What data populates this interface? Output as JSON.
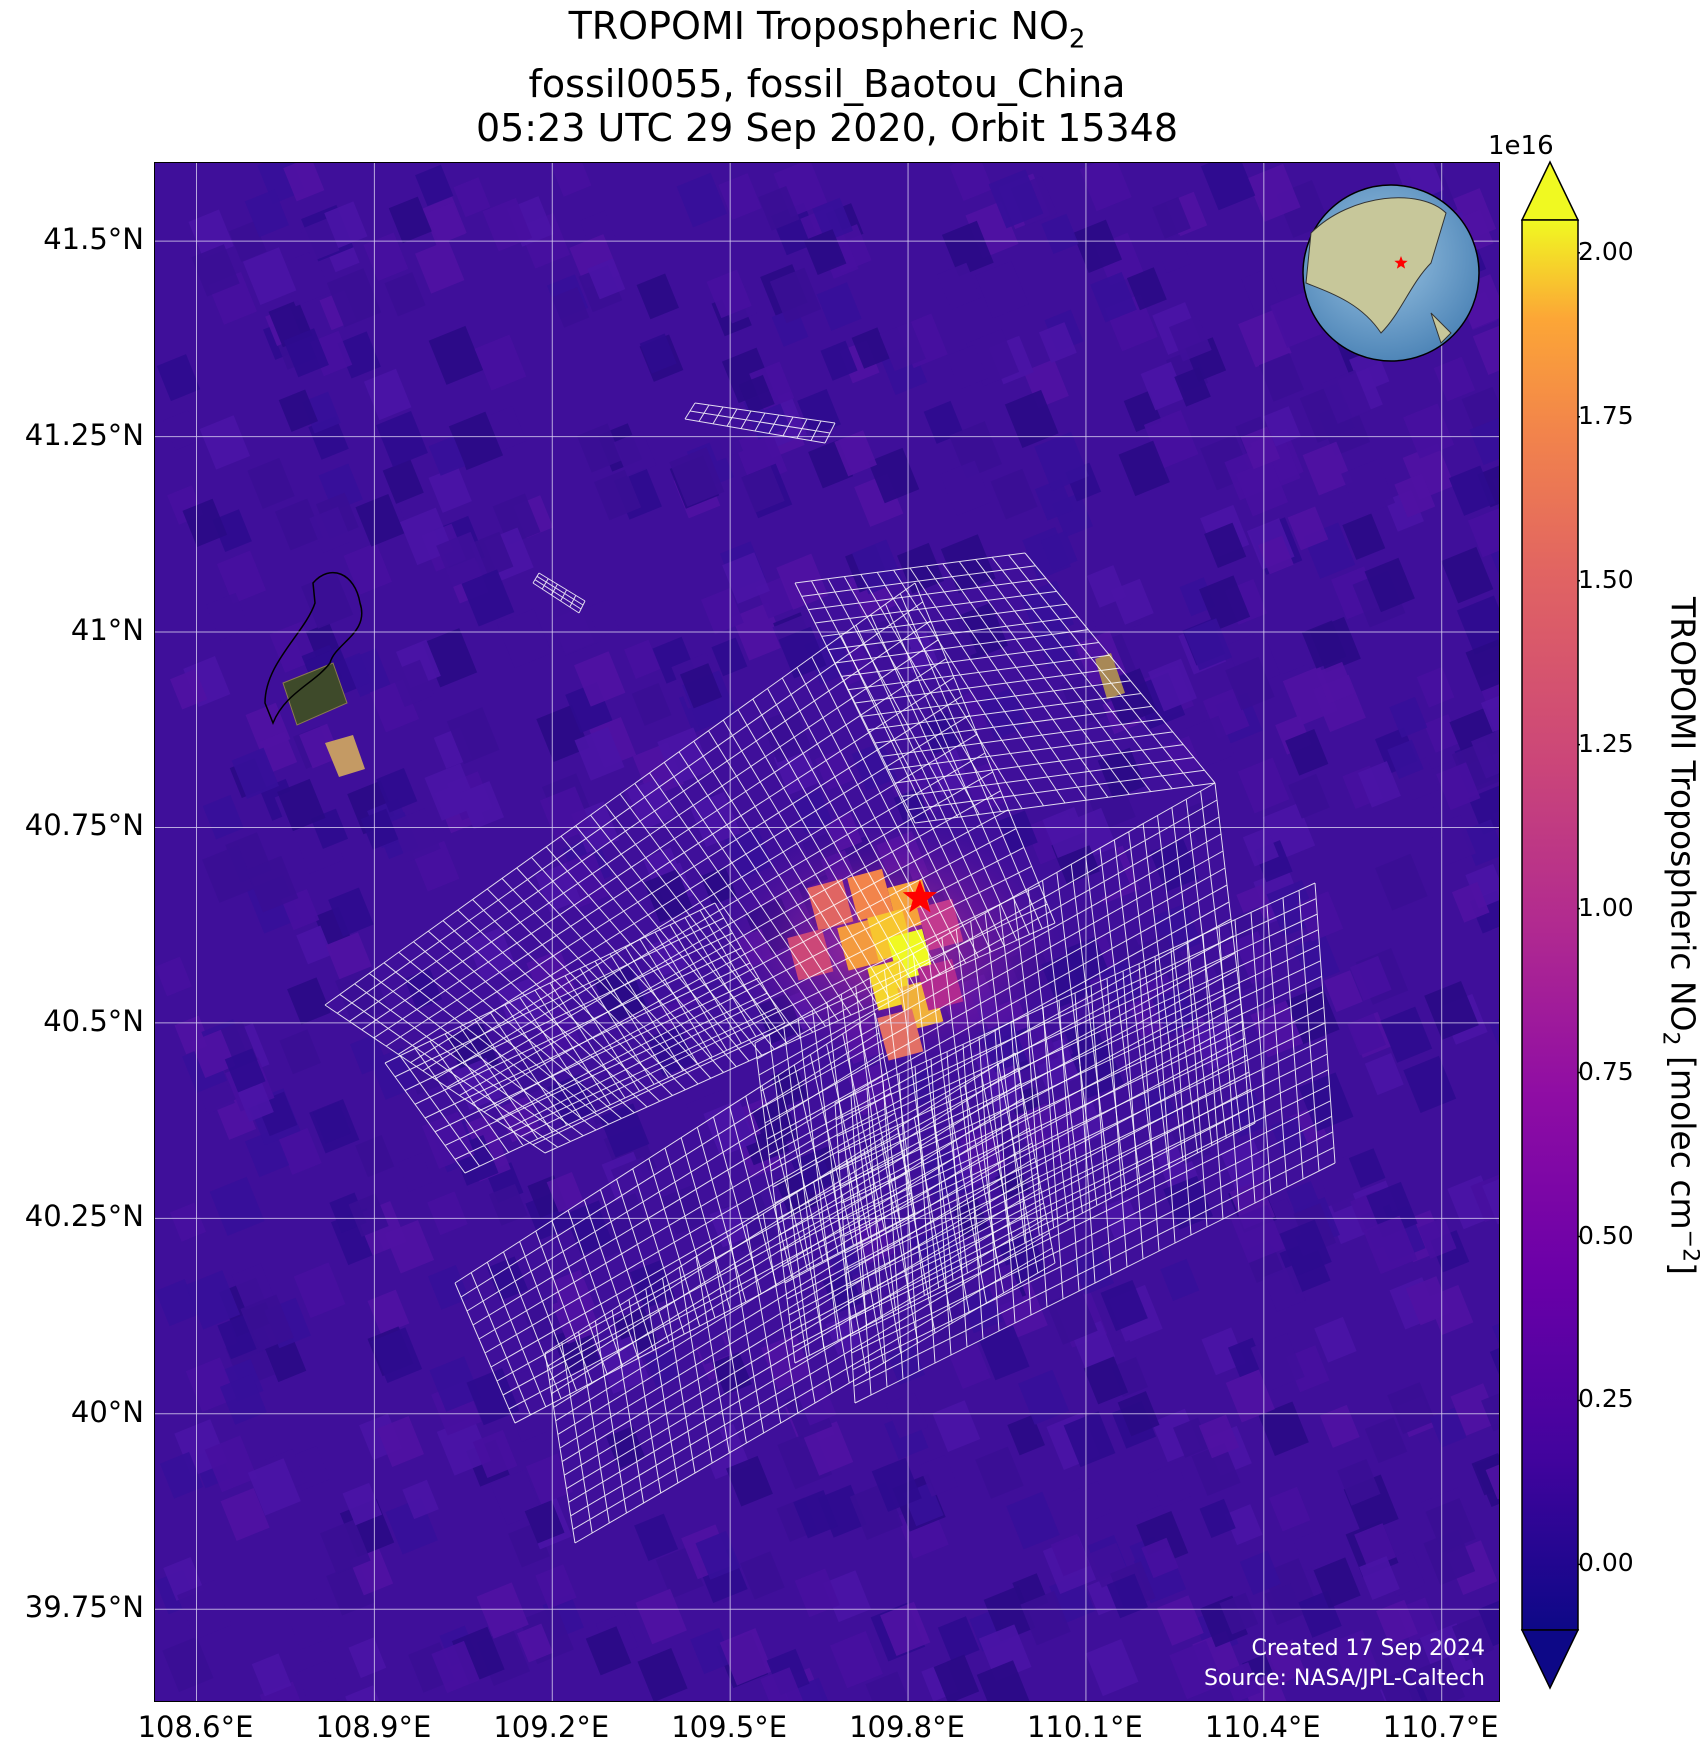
{
  "title": {
    "line1_prefix": "TROPOMI Tropospheric NO",
    "line1_sub": "2",
    "line2": "fossil0055, fossil_Baotou_China",
    "line3": "05:23 UTC 29 Sep 2020, Orbit 15348"
  },
  "map": {
    "lon_range": [
      108.53,
      110.8
    ],
    "lat_range": [
      39.63,
      41.6
    ],
    "lat_ticks": [
      {
        "value": 41.5,
        "label": "41.5°N"
      },
      {
        "value": 41.25,
        "label": "41.25°N"
      },
      {
        "value": 41.0,
        "label": "41°N"
      },
      {
        "value": 40.75,
        "label": "40.75°N"
      },
      {
        "value": 40.5,
        "label": "40.5°N"
      },
      {
        "value": 40.25,
        "label": "40.25°N"
      },
      {
        "value": 40.0,
        "label": "40°N"
      },
      {
        "value": 39.75,
        "label": "39.75°N"
      }
    ],
    "lon_ticks": [
      {
        "value": 108.6,
        "label": "108.6°E"
      },
      {
        "value": 108.9,
        "label": "108.9°E"
      },
      {
        "value": 109.2,
        "label": "109.2°E"
      },
      {
        "value": 109.5,
        "label": "109.5°E"
      },
      {
        "value": 109.8,
        "label": "109.8°E"
      },
      {
        "value": 110.1,
        "label": "110.1°E"
      },
      {
        "value": 110.4,
        "label": "110.4°E"
      },
      {
        "value": 110.7,
        "label": "110.7°E"
      }
    ],
    "gridlines": true,
    "target_marker": {
      "lon": 109.82,
      "lat": 40.66,
      "symbol": "star",
      "color": "#ff0000"
    },
    "plume_hotspot": {
      "lon": 109.77,
      "lat": 40.6
    },
    "inset_globe": {
      "position": "top-right",
      "ocean_color": "#7aa9cf",
      "land_color": "#c7c79a",
      "marker_color": "#ff0000"
    }
  },
  "colorbar": {
    "exponent_label": "1e16",
    "ticks": [
      {
        "value": 2.0,
        "label": "2.00"
      },
      {
        "value": 1.75,
        "label": "1.75"
      },
      {
        "value": 1.5,
        "label": "1.50"
      },
      {
        "value": 1.25,
        "label": "1.25"
      },
      {
        "value": 1.0,
        "label": "1.00"
      },
      {
        "value": 0.75,
        "label": "0.75"
      },
      {
        "value": 0.5,
        "label": "0.50"
      },
      {
        "value": 0.25,
        "label": "0.25"
      },
      {
        "value": 0.0,
        "label": "0.00"
      }
    ],
    "range": [
      -0.1,
      2.05
    ],
    "extend": "both",
    "colormap": "plasma",
    "label_prefix": "TROPOMI Tropospheric NO",
    "label_sub": "2",
    "label_mid": " [molec cm",
    "label_sup": "−2",
    "label_end": "]"
  },
  "credits": {
    "created": "Created 17 Sep 2024",
    "source": "Source: NASA/JPL-Caltech"
  },
  "colors": {
    "background_field": "#3f0f9a",
    "gridline": "#d8d0f0",
    "target_grid": "#ffffff"
  }
}
